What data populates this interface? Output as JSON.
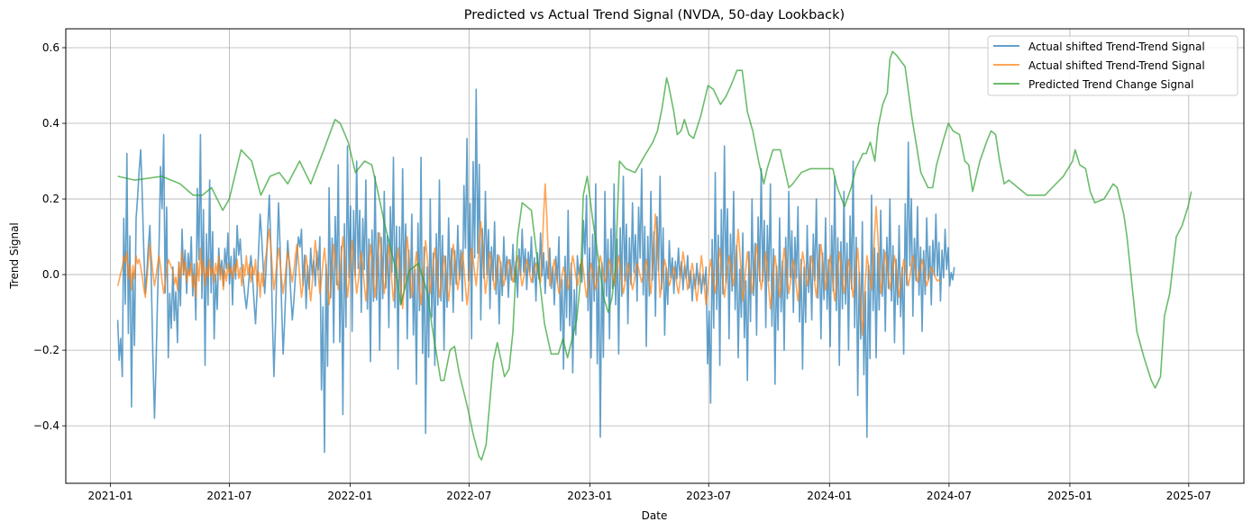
{
  "chart_data": {
    "type": "line",
    "title": "Predicted vs Actual Trend Signal (NVDA, 50-day Lookback)",
    "xlabel": "Date",
    "ylabel": "Trend Signal",
    "x_origin": "2021-01-01",
    "x_units": "days since 2021-01-01",
    "xlim_days": [
      -68,
      1726
    ],
    "ylim": [
      -0.552,
      0.65
    ],
    "grid": true,
    "legend_position": "top-right",
    "x_ticks": [
      {
        "label": "2021-01",
        "day": 0
      },
      {
        "label": "2021-07",
        "day": 181
      },
      {
        "label": "2022-01",
        "day": 365
      },
      {
        "label": "2022-07",
        "day": 546
      },
      {
        "label": "2023-01",
        "day": 730
      },
      {
        "label": "2023-07",
        "day": 911
      },
      {
        "label": "2024-01",
        "day": 1095
      },
      {
        "label": "2024-07",
        "day": 1277
      },
      {
        "label": "2025-01",
        "day": 1461
      },
      {
        "label": "2025-07",
        "day": 1642
      }
    ],
    "y_ticks": [
      {
        "label": "−0.4",
        "value": -0.4
      },
      {
        "label": "−0.2",
        "value": -0.2
      },
      {
        "label": "0.0",
        "value": 0.0
      },
      {
        "label": "0.2",
        "value": 0.2
      },
      {
        "label": "0.4",
        "value": 0.4
      },
      {
        "label": "0.6",
        "value": 0.6
      }
    ],
    "series": [
      {
        "name": "Actual shifted Trend-Trend Signal",
        "color": "#1f77b4",
        "start_day": 11,
        "step_days": 7,
        "values": [
          -0.12,
          -0.27,
          0.32,
          -0.35,
          0.15,
          0.33,
          -0.05,
          0.13,
          -0.38,
          0.08,
          0.37,
          -0.22,
          0.02,
          -0.18,
          0.12,
          -0.05,
          0.1,
          -0.12,
          0.37,
          -0.24,
          0.25,
          -0.17,
          0.07,
          -0.03,
          0.11,
          -0.08,
          0.13,
          0.02,
          -0.09,
          0.05,
          -0.13,
          0.16,
          -0.05,
          0.21,
          -0.27,
          0.19,
          -0.21,
          0.09,
          -0.12,
          0.05,
          0.12,
          -0.09,
          0.07,
          -0.03,
          0.1,
          -0.47,
          0.23,
          -0.18,
          0.29,
          -0.37,
          0.34,
          -0.15,
          0.3,
          -0.1,
          0.25,
          -0.23,
          0.26,
          -0.2,
          0.22,
          -0.14,
          0.31,
          -0.25,
          0.28,
          -0.17,
          0.16,
          -0.29,
          0.31,
          -0.42,
          0.2,
          -0.24,
          0.25,
          -0.2,
          0.15,
          -0.1,
          0.13,
          -0.07,
          0.36,
          -0.17,
          0.49,
          -0.12,
          0.22,
          -0.09,
          0.14,
          -0.13,
          0.1,
          -0.06,
          0.08,
          -0.06,
          0.12,
          -0.04,
          0.1,
          -0.07,
          0.11,
          -0.05,
          0.07,
          -0.08,
          0.1,
          -0.25,
          0.17,
          -0.26,
          0.05,
          -0.02,
          0.21,
          -0.22,
          0.24,
          -0.43,
          0.22,
          -0.17,
          0.24,
          -0.21,
          0.26,
          -0.13,
          0.19,
          -0.07,
          0.28,
          -0.19,
          0.22,
          -0.11,
          0.26,
          -0.16,
          0.09,
          -0.05,
          0.07,
          -0.04,
          0.05,
          -0.07,
          0.03,
          -0.05,
          0.02,
          -0.34,
          0.27,
          -0.24,
          0.34,
          -0.17,
          0.22,
          -0.22,
          0.11,
          -0.28,
          0.2,
          -0.16,
          0.28,
          -0.14,
          0.24,
          -0.29,
          0.15,
          -0.2,
          0.22,
          -0.1,
          0.18,
          -0.25,
          0.13,
          -0.12,
          0.2,
          -0.17,
          0.15,
          -0.19,
          0.26,
          -0.24,
          0.22,
          -0.2,
          0.3,
          -0.32,
          0.14,
          -0.43,
          0.21,
          -0.22,
          0.17,
          -0.15,
          0.2,
          -0.18,
          0.13,
          -0.21,
          0.35,
          -0.11,
          0.18,
          -0.15,
          0.15,
          -0.08,
          0.16,
          -0.07,
          0.12,
          -0.03,
          0.02
        ]
      },
      {
        "name": "Actual shifted Trend-Trend Signal",
        "color": "#ff7f0e",
        "start_day": 11,
        "step_days": 7,
        "values": [
          -0.03,
          0.02,
          0.06,
          -0.04,
          0.05,
          0.02,
          -0.06,
          0.08,
          -0.03,
          0.05,
          -0.05,
          0.04,
          0.01,
          -0.04,
          0.06,
          -0.02,
          0.03,
          -0.06,
          0.07,
          -0.03,
          0.04,
          -0.02,
          0.05,
          -0.04,
          0.03,
          -0.01,
          0.04,
          -0.03,
          0.05,
          -0.02,
          0.04,
          -0.06,
          0.03,
          0.12,
          -0.04,
          0.07,
          -0.05,
          0.06,
          -0.02,
          0.08,
          -0.06,
          0.05,
          -0.07,
          0.09,
          -0.05,
          0.07,
          -0.08,
          0.08,
          -0.04,
          0.1,
          -0.06,
          0.09,
          -0.05,
          0.06,
          -0.07,
          0.08,
          -0.06,
          0.11,
          -0.05,
          0.08,
          -0.07,
          0.07,
          -0.09,
          0.1,
          -0.06,
          0.06,
          -0.08,
          0.09,
          -0.05,
          0.07,
          -0.06,
          0.05,
          -0.07,
          0.08,
          -0.04,
          0.06,
          -0.08,
          0.07,
          -0.03,
          0.14,
          -0.05,
          0.06,
          -0.04,
          0.05,
          -0.03,
          0.04,
          -0.02,
          0.05,
          -0.03,
          0.04,
          -0.02,
          0.03,
          -0.02,
          0.24,
          -0.03,
          0.04,
          -0.05,
          0.02,
          -0.04,
          0.05,
          -0.03,
          0.04,
          -0.06,
          0.03,
          -0.04,
          0.05,
          -0.02,
          0.04,
          -0.03,
          0.05,
          -0.05,
          0.03,
          -0.04,
          0.03,
          -0.02,
          0.04,
          -0.05,
          0.16,
          -0.06,
          0.04,
          -0.03,
          0.02,
          -0.05,
          0.06,
          -0.04,
          0.03,
          -0.07,
          0.05,
          -0.08,
          0.04,
          -0.05,
          0.07,
          -0.06,
          0.05,
          -0.03,
          0.12,
          -0.07,
          0.06,
          -0.05,
          0.08,
          -0.04,
          0.06,
          -0.09,
          0.05,
          -0.06,
          0.07,
          -0.05,
          0.04,
          -0.07,
          0.06,
          -0.03,
          0.05,
          -0.06,
          0.08,
          -0.04,
          0.05,
          -0.07,
          0.06,
          -0.05,
          0.04,
          -0.06,
          0.07,
          -0.16,
          0.05,
          -0.04,
          0.18,
          -0.05,
          0.06,
          -0.04,
          0.05,
          -0.06,
          0.04,
          -0.03,
          0.05,
          -0.02,
          0.04,
          -0.03,
          0.02,
          -0.01,
          -0.02
        ]
      },
      {
        "name": "Predicted Trend Change Signal",
        "color": "#2ca02c",
        "points": [
          [
            11,
            0.26
          ],
          [
            37,
            0.25
          ],
          [
            58,
            0.255
          ],
          [
            78,
            0.26
          ],
          [
            106,
            0.24
          ],
          [
            126,
            0.21
          ],
          [
            140,
            0.21
          ],
          [
            154,
            0.23
          ],
          [
            171,
            0.17
          ],
          [
            181,
            0.2
          ],
          [
            199,
            0.33
          ],
          [
            215,
            0.3
          ],
          [
            229,
            0.21
          ],
          [
            243,
            0.26
          ],
          [
            257,
            0.27
          ],
          [
            270,
            0.24
          ],
          [
            288,
            0.3
          ],
          [
            305,
            0.24
          ],
          [
            325,
            0.33
          ],
          [
            342,
            0.41
          ],
          [
            350,
            0.4
          ],
          [
            362,
            0.35
          ],
          [
            373,
            0.27
          ],
          [
            387,
            0.3
          ],
          [
            398,
            0.29
          ],
          [
            407,
            0.22
          ],
          [
            418,
            0.13
          ],
          [
            435,
            0.01
          ],
          [
            442,
            -0.08
          ],
          [
            455,
            0.01
          ],
          [
            469,
            0.03
          ],
          [
            483,
            -0.05
          ],
          [
            490,
            -0.14
          ],
          [
            503,
            -0.28
          ],
          [
            508,
            -0.28
          ],
          [
            517,
            -0.2
          ],
          [
            524,
            -0.19
          ],
          [
            531,
            -0.26
          ],
          [
            545,
            -0.36
          ],
          [
            552,
            -0.42
          ],
          [
            561,
            -0.48
          ],
          [
            565,
            -0.49
          ],
          [
            572,
            -0.45
          ],
          [
            583,
            -0.23
          ],
          [
            589,
            -0.18
          ],
          [
            600,
            -0.27
          ],
          [
            607,
            -0.25
          ],
          [
            613,
            -0.15
          ],
          [
            620,
            0.1
          ],
          [
            627,
            0.19
          ],
          [
            641,
            0.17
          ],
          [
            650,
            0.04
          ],
          [
            661,
            -0.13
          ],
          [
            671,
            -0.21
          ],
          [
            682,
            -0.21
          ],
          [
            689,
            -0.17
          ],
          [
            696,
            -0.22
          ],
          [
            703,
            -0.17
          ],
          [
            710,
            -0.12
          ],
          [
            716,
            -0.01
          ],
          [
            720,
            0.21
          ],
          [
            726,
            0.26
          ],
          [
            734,
            0.15
          ],
          [
            744,
            0.03
          ],
          [
            751,
            -0.06
          ],
          [
            758,
            -0.1
          ],
          [
            764,
            -0.06
          ],
          [
            769,
            0.02
          ],
          [
            775,
            0.3
          ],
          [
            785,
            0.28
          ],
          [
            799,
            0.27
          ],
          [
            812,
            0.31
          ],
          [
            826,
            0.35
          ],
          [
            833,
            0.38
          ],
          [
            840,
            0.44
          ],
          [
            847,
            0.52
          ],
          [
            850,
            0.5
          ],
          [
            858,
            0.43
          ],
          [
            863,
            0.37
          ],
          [
            869,
            0.38
          ],
          [
            874,
            0.41
          ],
          [
            881,
            0.37
          ],
          [
            888,
            0.36
          ],
          [
            899,
            0.42
          ],
          [
            910,
            0.5
          ],
          [
            918,
            0.49
          ],
          [
            929,
            0.45
          ],
          [
            937,
            0.47
          ],
          [
            945,
            0.5
          ],
          [
            954,
            0.54
          ],
          [
            962,
            0.54
          ],
          [
            970,
            0.43
          ],
          [
            978,
            0.38
          ],
          [
            987,
            0.3
          ],
          [
            995,
            0.24
          ],
          [
            1000,
            0.28
          ],
          [
            1009,
            0.33
          ],
          [
            1020,
            0.33
          ],
          [
            1033,
            0.23
          ],
          [
            1039,
            0.24
          ],
          [
            1052,
            0.27
          ],
          [
            1066,
            0.28
          ],
          [
            1087,
            0.28
          ],
          [
            1100,
            0.28
          ],
          [
            1107,
            0.23
          ],
          [
            1118,
            0.18
          ],
          [
            1128,
            0.23
          ],
          [
            1135,
            0.28
          ],
          [
            1146,
            0.32
          ],
          [
            1151,
            0.32
          ],
          [
            1157,
            0.35
          ],
          [
            1164,
            0.3
          ],
          [
            1169,
            0.39
          ],
          [
            1176,
            0.45
          ],
          [
            1183,
            0.48
          ],
          [
            1187,
            0.57
          ],
          [
            1191,
            0.59
          ],
          [
            1197,
            0.58
          ],
          [
            1210,
            0.55
          ],
          [
            1220,
            0.42
          ],
          [
            1234,
            0.27
          ],
          [
            1245,
            0.23
          ],
          [
            1252,
            0.23
          ],
          [
            1258,
            0.29
          ],
          [
            1269,
            0.36
          ],
          [
            1276,
            0.4
          ],
          [
            1283,
            0.38
          ],
          [
            1293,
            0.37
          ],
          [
            1301,
            0.3
          ],
          [
            1307,
            0.29
          ],
          [
            1313,
            0.22
          ],
          [
            1324,
            0.3
          ],
          [
            1334,
            0.35
          ],
          [
            1341,
            0.38
          ],
          [
            1348,
            0.37
          ],
          [
            1354,
            0.3
          ],
          [
            1361,
            0.24
          ],
          [
            1368,
            0.25
          ],
          [
            1382,
            0.23
          ],
          [
            1396,
            0.21
          ],
          [
            1410,
            0.21
          ],
          [
            1423,
            0.21
          ],
          [
            1434,
            0.23
          ],
          [
            1451,
            0.26
          ],
          [
            1465,
            0.3
          ],
          [
            1469,
            0.33
          ],
          [
            1476,
            0.29
          ],
          [
            1485,
            0.28
          ],
          [
            1492,
            0.22
          ],
          [
            1499,
            0.19
          ],
          [
            1513,
            0.2
          ],
          [
            1527,
            0.24
          ],
          [
            1533,
            0.23
          ],
          [
            1543,
            0.16
          ],
          [
            1548,
            0.1
          ],
          [
            1563,
            -0.15
          ],
          [
            1574,
            -0.22
          ],
          [
            1585,
            -0.28
          ],
          [
            1591,
            -0.3
          ],
          [
            1599,
            -0.27
          ],
          [
            1605,
            -0.11
          ],
          [
            1613,
            -0.05
          ],
          [
            1623,
            0.1
          ],
          [
            1632,
            0.13
          ],
          [
            1641,
            0.18
          ],
          [
            1646,
            0.22
          ]
        ]
      }
    ]
  }
}
